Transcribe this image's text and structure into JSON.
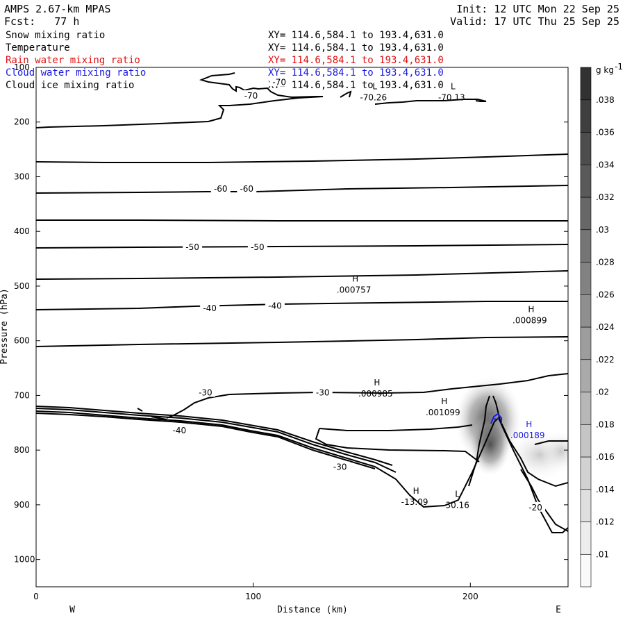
{
  "header": {
    "model": "AMPS 2.67-km MPAS",
    "forecast": "Fcst:   77 h",
    "init": "Init: 12 UTC Mon 22 Sep 25",
    "valid": "Valid: 17 UTC Thu 25 Sep 25"
  },
  "fields": [
    {
      "name": "Snow mixing ratio",
      "xy": "XY= 114.6,584.1 to 193.4,631.0",
      "color": "#000000"
    },
    {
      "name": "Temperature",
      "xy": "XY= 114.6,584.1 to 193.4,631.0",
      "color": "#000000"
    },
    {
      "name": "Rain water mixing ratio",
      "xy": "XY= 114.6,584.1 to 193.4,631.0",
      "color": "#e01010"
    },
    {
      "name": "Cloud water mixing ratio",
      "xy": "XY= 114.6,584.1 to 193.4,631.0",
      "color": "#1a1ae0"
    },
    {
      "name": "Cloud ice mixing ratio",
      "xy": "XY= 114.6,584.1 to 193.4,631.0",
      "color": "#000000"
    }
  ],
  "chart_data": {
    "type": "cross-section",
    "xlabel": "Distance (km)",
    "ylabel": "Pressure (hPa)",
    "xlim": [
      0,
      245
    ],
    "ylim": [
      1050,
      100
    ],
    "x_ticks": [
      "0",
      "100",
      "200"
    ],
    "y_ticks": [
      "100",
      "200",
      "300",
      "400",
      "500",
      "600",
      "700",
      "800",
      "900",
      "1000"
    ],
    "x_end_labels": {
      "left": "W",
      "right": "E"
    },
    "colorbar": {
      "unit": "g kg-1",
      "unit_base": "g kg",
      "unit_exp": "-1",
      "ticks": [
        ".01",
        ".012",
        ".014",
        ".016",
        ".018",
        ".02",
        ".022",
        ".024",
        ".026",
        ".028",
        ".03",
        ".032",
        ".034",
        ".036",
        ".038"
      ]
    },
    "temperature_contour_labels": [
      {
        "text": "-70",
        "x": 112,
        "p": 127
      },
      {
        "text": "-70",
        "x": 99,
        "p": 152
      },
      {
        "text": "-60",
        "x": 85,
        "p": 322
      },
      {
        "text": "-60",
        "x": 97,
        "p": 322
      },
      {
        "text": "-50",
        "x": 72,
        "p": 429
      },
      {
        "text": "-50",
        "x": 102,
        "p": 429
      },
      {
        "text": "-40",
        "x": 80,
        "p": 541
      },
      {
        "text": "-40",
        "x": 110,
        "p": 536
      },
      {
        "text": "-30",
        "x": 78,
        "p": 695
      },
      {
        "text": "-30",
        "x": 132,
        "p": 695
      },
      {
        "text": "-40",
        "x": 66,
        "p": 764
      },
      {
        "text": "-30",
        "x": 140,
        "p": 831
      },
      {
        "text": "-20",
        "x": 230,
        "p": 905
      }
    ],
    "extrema": [
      {
        "type": "L",
        "value": "-70.26",
        "x": 156,
        "p": 150,
        "color": "#000000"
      },
      {
        "type": "L",
        "value": "-70.13",
        "x": 192,
        "p": 150,
        "color": "#000000"
      },
      {
        "type": "H",
        "value": ".000757",
        "x": 147,
        "p": 502,
        "color": "#000000"
      },
      {
        "type": "H",
        "value": ".000899",
        "x": 228,
        "p": 558,
        "color": "#000000"
      },
      {
        "type": "H",
        "value": ".000985",
        "x": 157,
        "p": 692,
        "color": "#000000"
      },
      {
        "type": "H",
        "value": ".001099",
        "x": 188,
        "p": 726,
        "color": "#000000"
      },
      {
        "type": "H",
        "value": ".000189",
        "x": 227,
        "p": 768,
        "color": "#1a1ae0"
      },
      {
        "type": "H",
        "value": "-13.09",
        "x": 175,
        "p": 890,
        "color": "#000000"
      },
      {
        "type": "L",
        "value": "-30.16",
        "x": 194,
        "p": 896,
        "color": "#000000"
      }
    ]
  }
}
